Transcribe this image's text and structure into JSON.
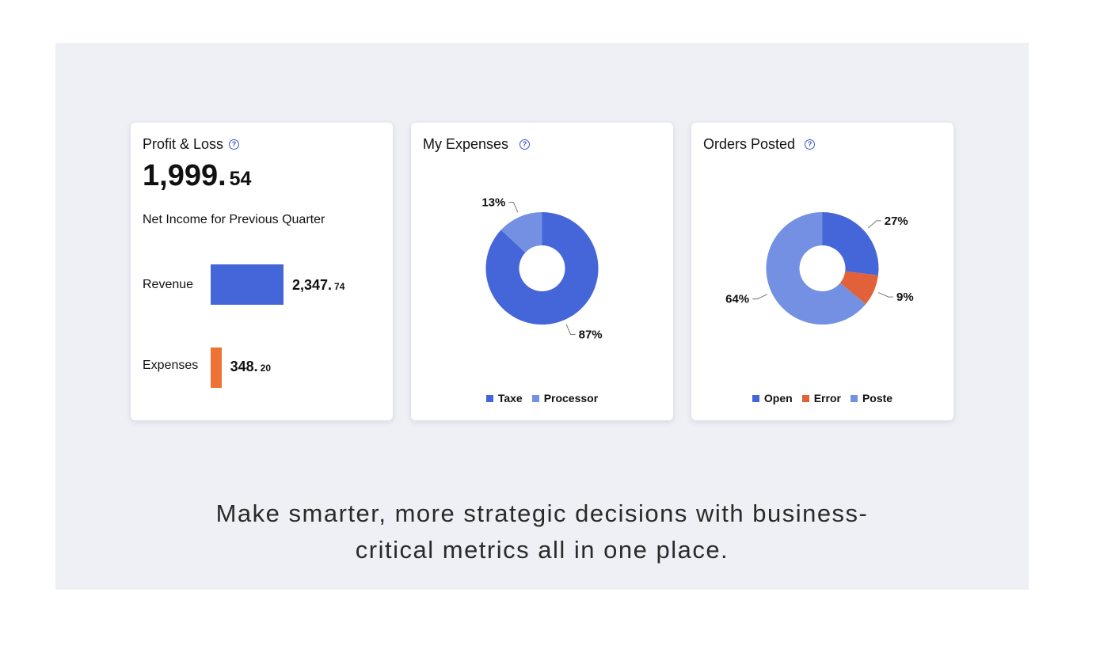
{
  "colors": {
    "blue": "#4466d8",
    "light_blue": "#7390e2",
    "orange": "#ec7333",
    "red_orange": "#e0613a"
  },
  "profit_loss": {
    "title": "Profit & Loss",
    "help_icon": "question-circle-icon",
    "total_main": "1,999.",
    "total_frac": "54",
    "subtitle": "Net Income for Previous Quarter",
    "revenue_label": "Revenue",
    "revenue_main": "2,347.",
    "revenue_frac": "74",
    "expenses_label": "Expenses",
    "expenses_main": "348.",
    "expenses_frac": "20"
  },
  "expenses": {
    "title": "My Expenses",
    "help_icon": "question-circle-icon",
    "slices": [
      {
        "name": "Taxe",
        "value": 87,
        "label": "87%",
        "color": "#4466d8"
      },
      {
        "name": "Processor",
        "value": 13,
        "label": "13%",
        "color": "#7390e2"
      }
    ]
  },
  "orders": {
    "title": "Orders Posted",
    "help_icon": "question-circle-icon",
    "slices": [
      {
        "name": "Open",
        "value": 27,
        "label": "27%",
        "color": "#4466d8"
      },
      {
        "name": "Error",
        "value": 9,
        "label": "9%",
        "color": "#e0613a"
      },
      {
        "name": "Poste",
        "value": 64,
        "label": "64%",
        "color": "#7390e2"
      }
    ]
  },
  "chart_data": [
    {
      "type": "bar",
      "categories": [
        "Revenue",
        "Expenses"
      ],
      "values": [
        2347.74,
        348.2
      ]
    },
    {
      "type": "pie",
      "categories": [
        "Taxe",
        "Processor"
      ],
      "values": [
        87,
        13
      ]
    },
    {
      "type": "pie",
      "categories": [
        "Open",
        "Error",
        "Poste"
      ],
      "values": [
        27,
        9,
        64
      ]
    }
  ],
  "tagline": {
    "line1": "Make smarter, more strategic decisions with business-",
    "line2": "critical metrics all in one place."
  }
}
